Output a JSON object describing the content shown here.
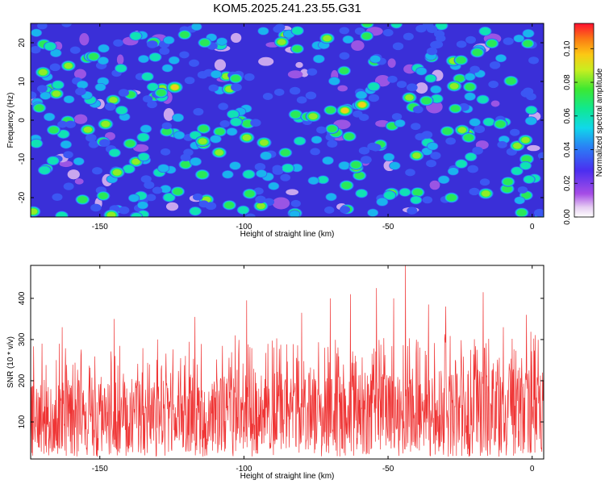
{
  "title": "KOM5.2025.241.23.55.G31",
  "chart_data": [
    {
      "type": "heatmap",
      "xlabel": "Height of straight line (km)",
      "ylabel": "Frequency (Hz)",
      "xlim": [
        -174,
        4
      ],
      "ylim": [
        -25,
        25
      ],
      "xticks": [
        -150,
        -100,
        -50,
        0
      ],
      "yticks": [
        -20,
        -10,
        0,
        10,
        20
      ],
      "colorbar": {
        "label": "Normalized spectral amplitude",
        "range": [
          0.0,
          0.115
        ],
        "ticks": [
          "0.00",
          "0.02",
          "0.04",
          "0.06",
          "0.08",
          "0.10"
        ],
        "colormap": "rainbow (white-purple-blue-cyan-green-yellow-orange-red)"
      },
      "hotspots": [
        {
          "x": -124,
          "y": 8.5,
          "value": 0.1
        },
        {
          "x": -59,
          "y": 4,
          "value": 0.1
        },
        {
          "x": -65,
          "y": 2.5,
          "value": 0.1
        },
        {
          "x": -76,
          "y": 1,
          "value": 0.09
        },
        {
          "x": -148,
          "y": -1,
          "value": 0.09
        },
        {
          "x": -99,
          "y": -4.5,
          "value": 0.09
        },
        {
          "x": -144,
          "y": -13.5,
          "value": 0.09
        },
        {
          "x": -98,
          "y": -19,
          "value": 0.08
        },
        {
          "x": -156,
          "y": -20.5,
          "value": 0.08
        },
        {
          "x": -146,
          "y": -24.5,
          "value": 0.09
        },
        {
          "x": -22,
          "y": -4.5,
          "value": 0.08
        },
        {
          "x": -19,
          "y": 17.5,
          "value": 0.08
        },
        {
          "x": -172,
          "y": -6,
          "value": 0.07
        },
        {
          "x": -11,
          "y": -1,
          "value": 0.08
        },
        {
          "x": -28,
          "y": -20,
          "value": 0.08
        }
      ]
    },
    {
      "type": "line",
      "xlabel": "Height of straight line (km)",
      "ylabel": "SNR (10 * v/v)",
      "xlim": [
        -174,
        4
      ],
      "ylim": [
        10,
        480
      ],
      "xticks": [
        -150,
        -100,
        -50,
        0
      ],
      "yticks": [
        100,
        200,
        300,
        400
      ],
      "color": "#ef3434",
      "peaks": [
        {
          "x": -170,
          "y": 290
        },
        {
          "x": -163,
          "y": 330
        },
        {
          "x": -145,
          "y": 350
        },
        {
          "x": -130,
          "y": 300
        },
        {
          "x": -117,
          "y": 355
        },
        {
          "x": -103,
          "y": 310
        },
        {
          "x": -99,
          "y": 395
        },
        {
          "x": -80,
          "y": 365
        },
        {
          "x": -70,
          "y": 400
        },
        {
          "x": -63,
          "y": 410
        },
        {
          "x": -54,
          "y": 425
        },
        {
          "x": -48,
          "y": 400
        },
        {
          "x": -44,
          "y": 482
        },
        {
          "x": -36,
          "y": 385
        },
        {
          "x": -30,
          "y": 380
        },
        {
          "x": -17,
          "y": 415
        },
        {
          "x": -10,
          "y": 330
        },
        {
          "x": -2,
          "y": 360
        }
      ],
      "baseline_range": [
        50,
        200
      ]
    }
  ]
}
